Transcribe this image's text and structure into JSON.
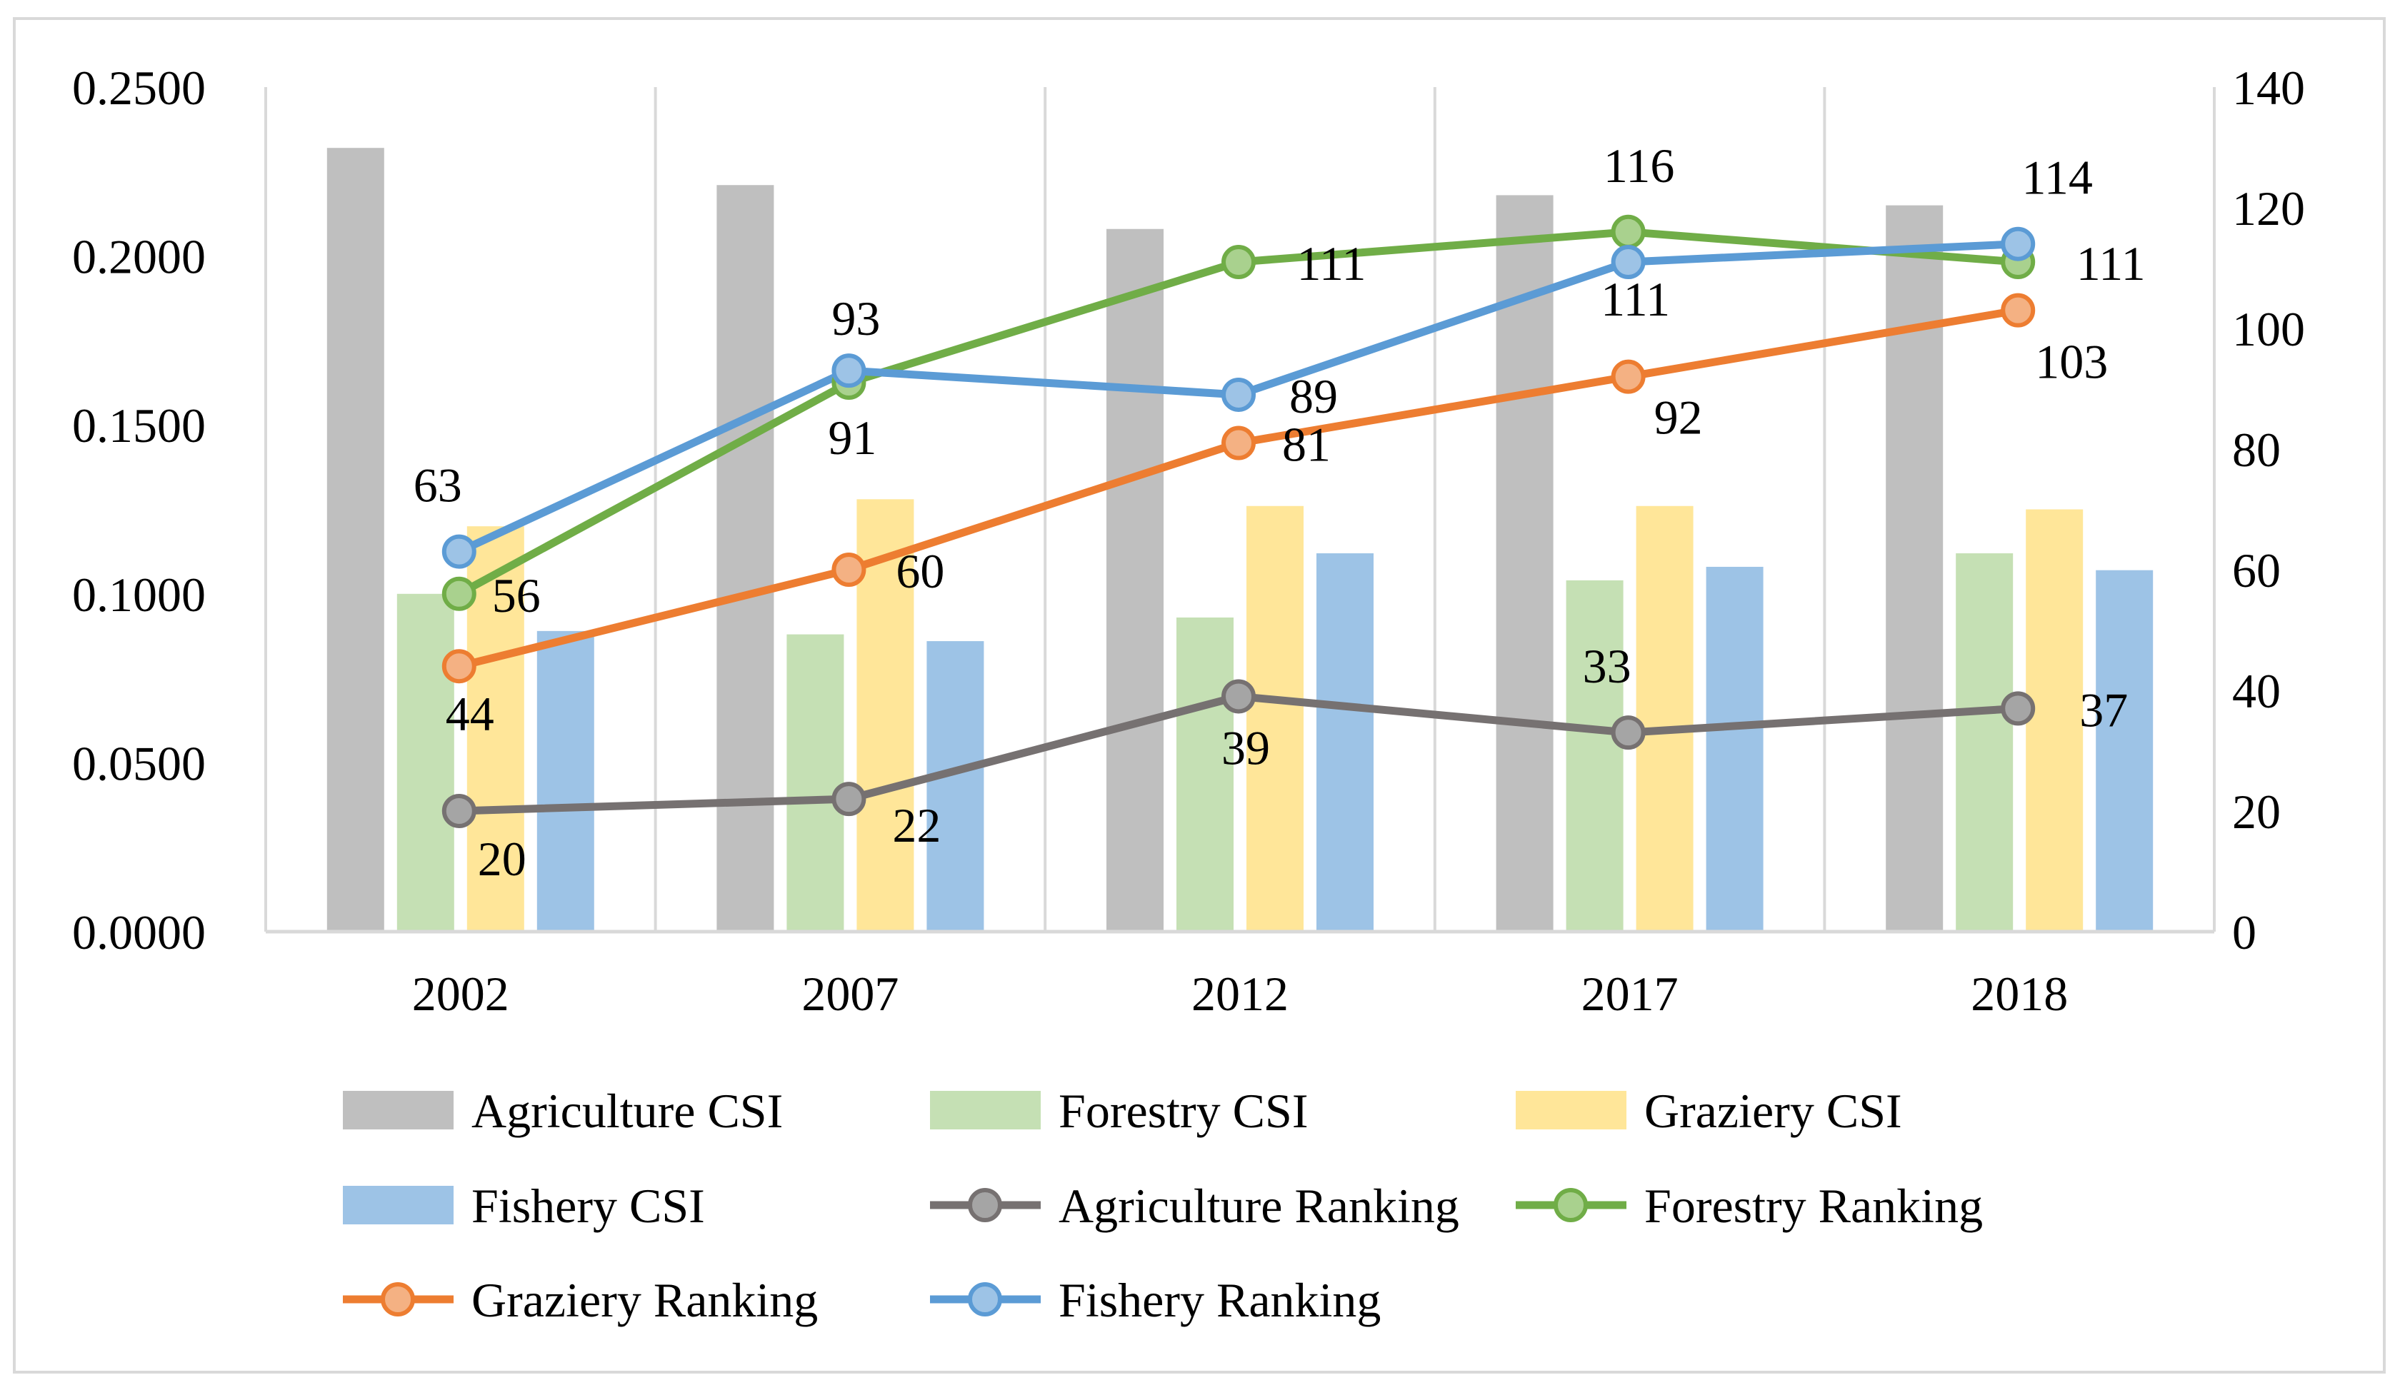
{
  "chart_data": {
    "type": "bar",
    "title": "",
    "categories": [
      "2002",
      "2007",
      "2012",
      "2017",
      "2018"
    ],
    "left_axis": {
      "ylim": [
        0,
        0.25
      ],
      "ticks": [
        "0.0000",
        "0.0500",
        "0.1000",
        "0.1500",
        "0.2000",
        "0.2500"
      ]
    },
    "right_axis": {
      "ylim": [
        0,
        140
      ],
      "ticks": [
        "0",
        "20",
        "40",
        "60",
        "80",
        "100",
        "120",
        "140"
      ]
    },
    "bar_series": [
      {
        "name": "Agriculture CSI",
        "color": "#BFBFBF",
        "values": [
          0.232,
          0.221,
          0.208,
          0.218,
          0.215
        ]
      },
      {
        "name": "Forestry CSI",
        "color": "#C5E0B4",
        "values": [
          0.1,
          0.088,
          0.093,
          0.104,
          0.112
        ]
      },
      {
        "name": "Graziery CSI",
        "color": "#FFE699",
        "values": [
          0.12,
          0.128,
          0.126,
          0.126,
          0.125
        ]
      },
      {
        "name": "Fishery CSI",
        "color": "#9DC3E6",
        "values": [
          0.089,
          0.086,
          0.112,
          0.108,
          0.107
        ]
      }
    ],
    "line_series": [
      {
        "name": "Agriculture Ranking",
        "color": "#767171",
        "marker": "#A5A5A5",
        "values": [
          20,
          22,
          39,
          33,
          37
        ],
        "labels": [
          "20",
          "22",
          "39",
          "33",
          "37"
        ]
      },
      {
        "name": "Forestry Ranking",
        "color": "#70AD47",
        "marker": "#A9D18E",
        "values": [
          56,
          91,
          111,
          116,
          111
        ],
        "labels": [
          "56",
          "91",
          "111",
          "116",
          "111"
        ]
      },
      {
        "name": "Graziery Ranking",
        "color": "#ED7D31",
        "marker": "#F4B183",
        "values": [
          44,
          60,
          81,
          92,
          103
        ],
        "labels": [
          "44",
          "60",
          "81",
          "92",
          "103"
        ]
      },
      {
        "name": "Fishery Ranking",
        "color": "#5B9BD5",
        "marker": "#9DC3E6",
        "values": [
          63,
          93,
          89,
          111,
          114
        ],
        "labels": [
          "63",
          "93",
          "89",
          "111",
          "114"
        ]
      }
    ],
    "legend": [
      "Agriculture CSI",
      "Forestry CSI",
      "Graziery CSI",
      "Fishery CSI",
      "Agriculture Ranking",
      "Forestry Ranking",
      "Graziery Ranking",
      "Fishery Ranking"
    ],
    "legend_position": "bottom",
    "grid": "vertical"
  }
}
